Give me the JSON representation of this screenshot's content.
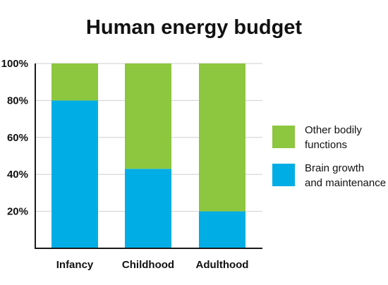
{
  "chart_data": {
    "type": "bar",
    "stacked": true,
    "title": "Human energy budget",
    "categories": [
      "Infancy",
      "Childhood",
      "Adulthood"
    ],
    "series": [
      {
        "name": "Brain growth and maintenance",
        "values": [
          80,
          43,
          20
        ],
        "color": "#00AEE5"
      },
      {
        "name": "Other bodily functions",
        "values": [
          20,
          57,
          80
        ],
        "color": "#8DC63F"
      }
    ],
    "ylim": [
      0,
      100
    ],
    "yticks": [
      "20%",
      "40%",
      "60%",
      "80%",
      "100%"
    ],
    "ytick_values": [
      20,
      40,
      60,
      80,
      100
    ],
    "grid": true,
    "legend": {
      "position": "right",
      "items": [
        {
          "lines": [
            "Other bodily",
            "functions"
          ],
          "color": "#8DC63F"
        },
        {
          "lines": [
            "Brain growth",
            "and maintenance"
          ],
          "color": "#00AEE5"
        }
      ]
    }
  }
}
